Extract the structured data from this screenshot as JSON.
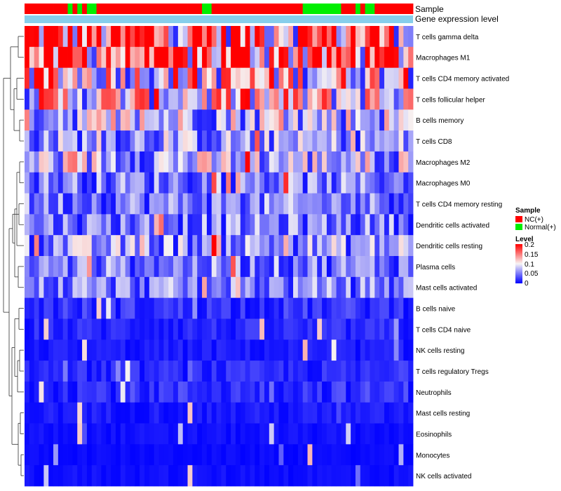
{
  "chart_data": {
    "type": "heatmap",
    "annotations": {
      "sample_label": "Sample",
      "expression_label": "Gene expression level"
    },
    "legend": {
      "position": "right",
      "sample_title": "Sample",
      "sample_items": [
        {
          "label": "NC(+)",
          "color": "#ff0000"
        },
        {
          "label": "Normal(+)",
          "color": "#00ee00"
        }
      ],
      "level_title": "Level",
      "level_ticks": [
        "0.2",
        "0.15",
        "0.1",
        "0.05",
        "0"
      ],
      "level_values": [
        0.2,
        0.15,
        0.1,
        0.05,
        0
      ]
    },
    "colors": {
      "low": "#0000ff",
      "mid": "#f7f4f4",
      "high": "#ff0000",
      "nc": "#ff0000",
      "normal": "#00ee00",
      "expression_bar": "#87ceeb",
      "dendrogram": "#333333"
    },
    "value_range": [
      0,
      0.2
    ],
    "sample_groups": "NNNNNNNNNGNGNGGNNNNNNNNNNNNNNNNNNNNNNGGNNNNNNNNNNNNNNNNNNNGGGGGGGGNNNGNGGNNNNNNNNG",
    "columns": 81,
    "rows": [
      {
        "label": "T cells gamma delta",
        "base": 0.16
      },
      {
        "label": "Macrophages M1",
        "base": 0.155
      },
      {
        "label": "T cells CD4 memory activated",
        "base": 0.11
      },
      {
        "label": "T cells follicular helper",
        "base": 0.105
      },
      {
        "label": "B cells memory",
        "base": 0.08
      },
      {
        "label": "T cells CD8",
        "base": 0.06
      },
      {
        "label": "Macrophages M2",
        "base": 0.075
      },
      {
        "label": "Macrophages M0",
        "base": 0.05
      },
      {
        "label": "T cells CD4 memory resting",
        "base": 0.05
      },
      {
        "label": "Dendritic cells activated",
        "base": 0.05
      },
      {
        "label": "Dendritic cells resting",
        "base": 0.06
      },
      {
        "label": "Plasma cells",
        "base": 0.05
      },
      {
        "label": "Mast cells activated",
        "base": 0.05
      },
      {
        "label": "B cells naive",
        "base": 0.02
      },
      {
        "label": "T cells CD4 naive",
        "base": 0.015
      },
      {
        "label": "NK cells resting",
        "base": 0.01
      },
      {
        "label": "T cells regulatory  Tregs",
        "base": 0.015
      },
      {
        "label": "Neutrophils",
        "base": 0.02
      },
      {
        "label": "Mast cells resting",
        "base": 0.01
      },
      {
        "label": "Eosinophils",
        "base": 0.006
      },
      {
        "label": "Monocytes",
        "base": 0.004
      },
      {
        "label": "NK cells activated",
        "base": 0.006
      }
    ]
  }
}
